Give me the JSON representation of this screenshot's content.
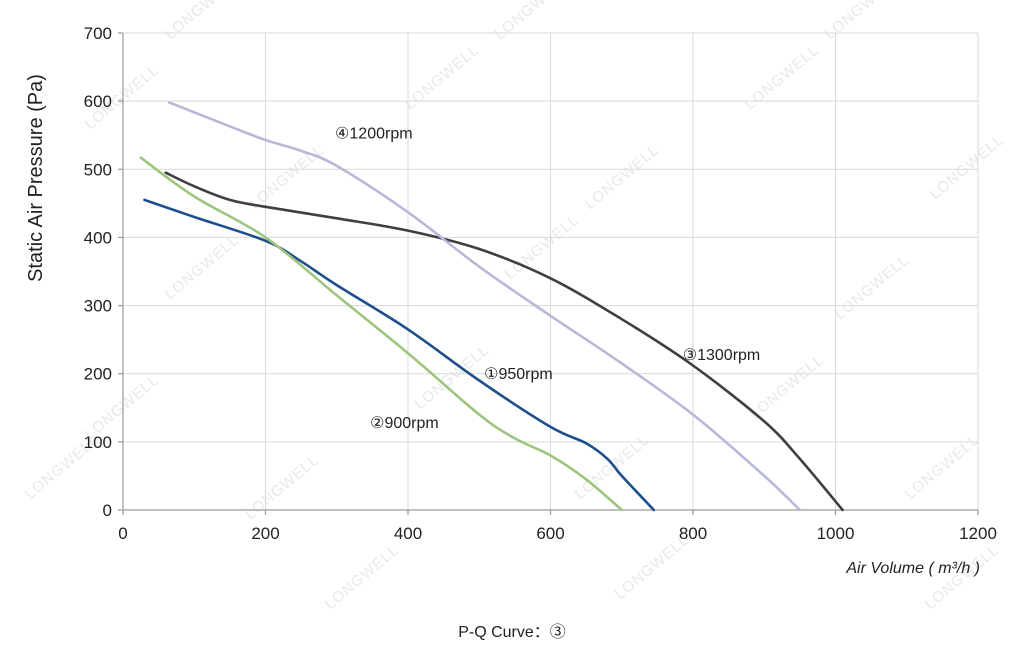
{
  "chart_data": {
    "type": "line",
    "title": "",
    "caption": "P-Q Curve：③",
    "xlabel": "Air Volume ( m³/h )",
    "ylabel": "Static Air Pressure  (Pa)",
    "xlim": [
      0,
      1200
    ],
    "ylim": [
      0,
      700
    ],
    "x_ticks": [
      0,
      200,
      400,
      600,
      800,
      1000,
      1200
    ],
    "y_ticks": [
      0,
      100,
      200,
      300,
      400,
      500,
      600,
      700
    ],
    "grid": true,
    "watermark": "LONGWELL",
    "series": [
      {
        "name": "①950rpm",
        "color": "#1f4e8c",
        "x": [
          30,
          100,
          200,
          250,
          300,
          400,
          500,
          600,
          650,
          680,
          700,
          745
        ],
        "y": [
          455,
          430,
          395,
          365,
          330,
          265,
          190,
          122,
          98,
          75,
          50,
          0
        ]
      },
      {
        "name": "②900rpm",
        "color": "#9cc57e",
        "x": [
          25,
          100,
          200,
          300,
          400,
          500,
          550,
          600,
          650,
          700
        ],
        "y": [
          517,
          460,
          400,
          315,
          230,
          140,
          105,
          80,
          45,
          0
        ]
      },
      {
        "name": "③1300rpm",
        "color": "#3f3f3f",
        "x": [
          60,
          100,
          150,
          200,
          300,
          400,
          500,
          600,
          700,
          800,
          900,
          950,
          1010
        ],
        "y": [
          495,
          475,
          455,
          445,
          428,
          410,
          383,
          340,
          280,
          212,
          130,
          75,
          0
        ]
      },
      {
        "name": "④1200rpm",
        "color": "#b8b9d8",
        "x": [
          65,
          150,
          200,
          250,
          300,
          400,
          500,
          600,
          700,
          800,
          900,
          950
        ],
        "y": [
          598,
          563,
          543,
          527,
          505,
          437,
          357,
          285,
          215,
          140,
          50,
          0
        ]
      }
    ]
  }
}
